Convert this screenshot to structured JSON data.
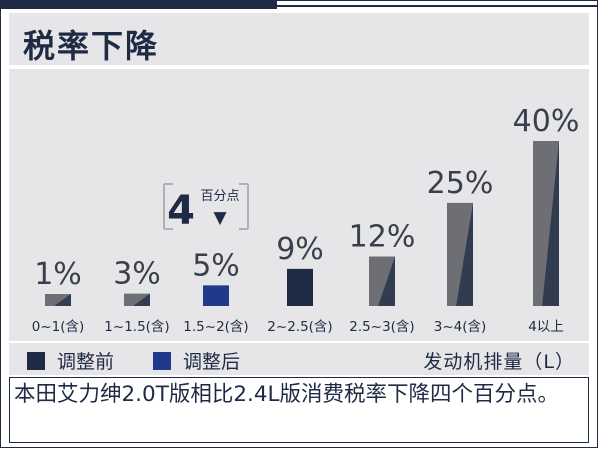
{
  "title": "税率下降",
  "caption": "本田艾力绅2.0T版相比2.4L版消费税率下降四个百分点。",
  "legend": {
    "before_label": "调整前",
    "after_label": "调整后",
    "unit_label": "发动机排量（L）"
  },
  "callout": {
    "value": "4",
    "unit": "百分点",
    "arrow": "▼"
  },
  "colors": {
    "before": "#1f2b44",
    "after": "#1f3a8a",
    "gray_bar": "#6e6f74",
    "text": "#1f2b44",
    "panel": "#e6e6e8"
  },
  "chart_data": {
    "type": "bar",
    "title": "税率下降",
    "xlabel": "发动机排量（L）",
    "ylabel": "",
    "ylim": [
      0,
      40
    ],
    "categories": [
      "0~1(含)",
      "1~1.5(含)",
      "1.5~2(含)",
      "2~2.5(含)",
      "2.5~3(含)",
      "3~4(含)",
      "4以上"
    ],
    "values": [
      1,
      3,
      5,
      9,
      12,
      25,
      40
    ],
    "value_labels": [
      "1%",
      "3%",
      "5%",
      "9%",
      "12%",
      "25%",
      "40%"
    ],
    "series": [
      {
        "name": "调整前",
        "values": [
          null,
          null,
          null,
          9,
          null,
          null,
          null
        ]
      },
      {
        "name": "调整后",
        "values": [
          null,
          null,
          5,
          null,
          null,
          null,
          null
        ]
      }
    ],
    "grid": false,
    "legend_position": "bottom-left"
  }
}
